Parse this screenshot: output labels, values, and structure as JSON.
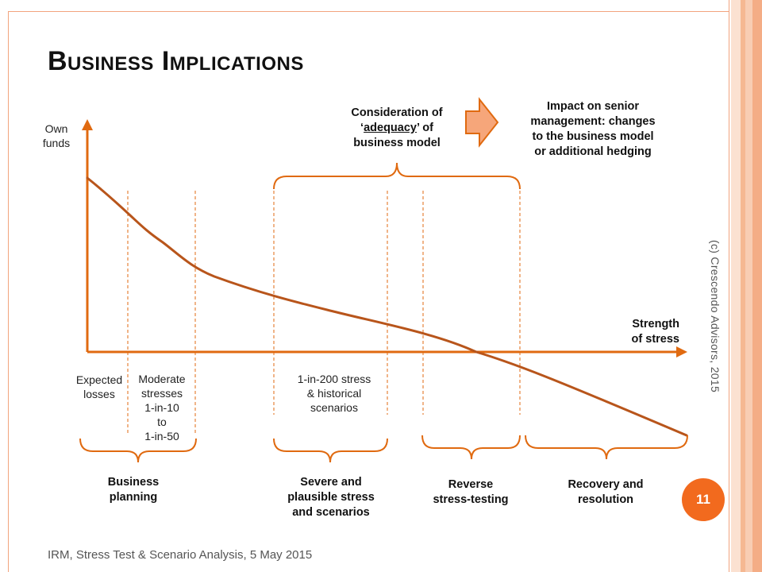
{
  "slide": {
    "title": "Business Implications",
    "footer": "IRM, Stress Test & Scenario Analysis, 5 May 2015",
    "page_number": "11",
    "copyright": "(c) Crescendo Advisors, 2015",
    "colors": {
      "accent": "#e06a10",
      "curve": "#b8551b",
      "frame": "#f2a47e",
      "badge": "#f26a1e"
    }
  },
  "axes": {
    "y_label_1": "Own",
    "y_label_2": "funds",
    "x_label_1": "Strength",
    "x_label_2": "of stress"
  },
  "top": {
    "consideration_1": "Consideration of",
    "consideration_open": "‘",
    "consideration_word": "adequacy",
    "consideration_close": "’ of",
    "consideration_3": "business model",
    "impact_1": "Impact on senior",
    "impact_2": "management: changes",
    "impact_3": "to the business model",
    "impact_4": "or additional hedging"
  },
  "zones": {
    "expected_1": "Expected",
    "expected_2": "losses",
    "moderate_1": "Moderate",
    "moderate_2": "stresses",
    "moderate_3": "1-in-10",
    "moderate_4": "to",
    "moderate_5": "1-in-50",
    "severe_1": "1-in-200 stress",
    "severe_2": "& historical",
    "severe_3": "scenarios"
  },
  "bottom": {
    "business_1": "Business",
    "business_2": "planning",
    "severe_1": "Severe and",
    "severe_2": "plausible stress",
    "severe_3": "and scenarios",
    "reverse_1": "Reverse",
    "reverse_2": "stress-testing",
    "recovery_1": "Recovery and",
    "recovery_2": "resolution"
  }
}
